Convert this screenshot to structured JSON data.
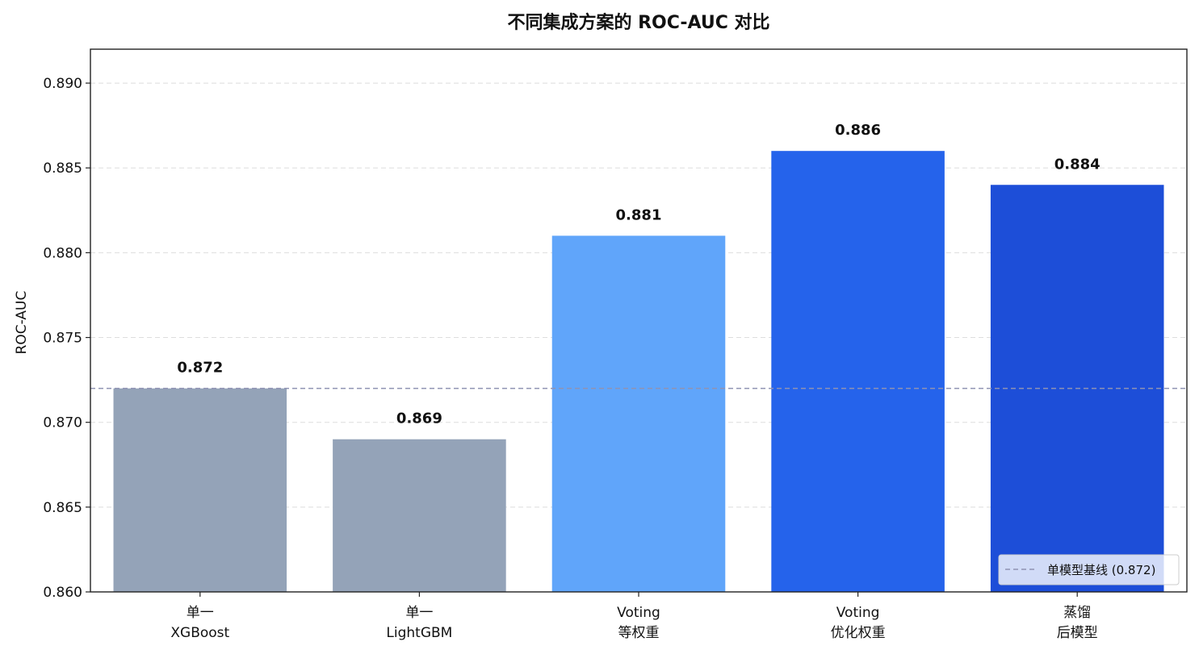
{
  "chart_data": {
    "type": "bar",
    "title": "不同集成方案的 ROC-AUC 对比",
    "xlabel": "",
    "ylabel": "ROC-AUC",
    "ylim": [
      0.86,
      0.892
    ],
    "yticks": [
      0.86,
      0.865,
      0.87,
      0.875,
      0.88,
      0.885,
      0.89
    ],
    "ytick_labels": [
      "0.860",
      "0.865",
      "0.870",
      "0.875",
      "0.880",
      "0.885",
      "0.890"
    ],
    "grid": "horizontal-dashed",
    "categories": [
      {
        "line1": "单一",
        "line2": "XGBoost"
      },
      {
        "line1": "单一",
        "line2": "LightGBM"
      },
      {
        "line1": "Voting",
        "line2": "等权重"
      },
      {
        "line1": "Voting",
        "line2": "优化权重"
      },
      {
        "line1": "蒸馏",
        "line2": "后模型"
      }
    ],
    "values": [
      0.872,
      0.869,
      0.881,
      0.886,
      0.884
    ],
    "value_labels": [
      "0.872",
      "0.869",
      "0.881",
      "0.886",
      "0.884"
    ],
    "colors": [
      "#94a3b8",
      "#94a3b8",
      "#60a5fa",
      "#2563eb",
      "#1d4ed8"
    ],
    "baseline": {
      "value": 0.872,
      "color": "#8f93b3",
      "label": "单模型基线 (0.872)"
    },
    "legend_position": "lower-right"
  }
}
